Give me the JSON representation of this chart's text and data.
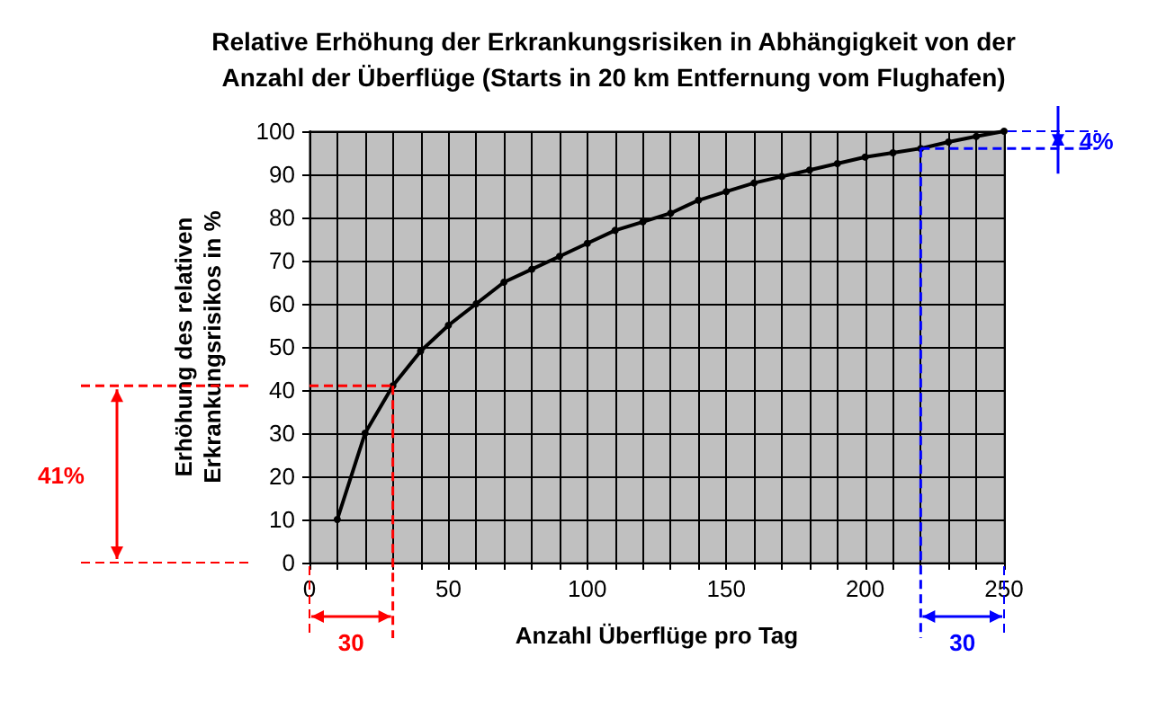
{
  "chart_data": {
    "type": "line",
    "title": "Relative Erhöhung der Erkrankungsrisiken in Abhängigkeit von der\nAnzahl der Überflüge (Starts in 20 km Entfernung vom Flughafen)",
    "xlabel": "Anzahl Überflüge pro Tag",
    "ylabel": "Erhöhung des relativen\nErkrankungsrisikos in %",
    "x": [
      10,
      20,
      30,
      40,
      50,
      60,
      70,
      80,
      90,
      100,
      110,
      120,
      130,
      140,
      150,
      160,
      170,
      180,
      190,
      200,
      210,
      220,
      230,
      240,
      250
    ],
    "series": [
      {
        "color": "#000000",
        "values": [
          10,
          30,
          41,
          49,
          55,
          60,
          65,
          68,
          71,
          74,
          77,
          79,
          81,
          84,
          86,
          88,
          89.5,
          91,
          92.5,
          94,
          95,
          96,
          97.5,
          98.8,
          100
        ]
      }
    ],
    "xlim": [
      0,
      250
    ],
    "xticks": [
      0,
      {
        "value": 10,
        "label": null
      },
      {
        "value": 20,
        "label": null
      },
      {
        "value": 30,
        "label": null
      },
      {
        "value": 40,
        "label": null
      },
      50,
      {
        "value": 60,
        "label": null
      },
      {
        "value": 70,
        "label": null
      },
      {
        "value": 80,
        "label": null
      },
      {
        "value": 90,
        "label": null
      },
      100,
      {
        "value": 110,
        "label": null
      },
      {
        "value": 120,
        "label": null
      },
      {
        "value": 130,
        "label": null
      },
      {
        "value": 140,
        "label": null
      },
      150,
      {
        "value": 160,
        "label": null
      },
      {
        "value": 170,
        "label": null
      },
      {
        "value": 180,
        "label": null
      },
      {
        "value": 190,
        "label": null
      },
      200,
      {
        "value": 210,
        "label": null
      },
      {
        "value": 220,
        "label": null
      },
      {
        "value": 230,
        "label": null
      },
      {
        "value": 240,
        "label": null
      },
      250
    ],
    "ylim": [
      0,
      100
    ],
    "yticks": [
      0,
      10,
      20,
      30,
      40,
      50,
      60,
      70,
      80,
      90,
      100
    ],
    "grid": true,
    "marker": "circle",
    "line_style": "solid",
    "ref_lines": [
      {
        "axis": "y",
        "value": 41,
        "color": "#ff0000",
        "line_style": "dashed"
      },
      {
        "axis": "x",
        "value": 30,
        "color": "#ff0000",
        "line_style": "dashed"
      },
      {
        "axis": "y",
        "value": 96,
        "color": "#0000ff",
        "line_style": "dashed"
      },
      {
        "axis": "x",
        "value": 220,
        "color": "#0000ff",
        "line_style": "dashed"
      }
    ],
    "annotations": [
      "41%",
      "30",
      "4%",
      "30"
    ]
  }
}
